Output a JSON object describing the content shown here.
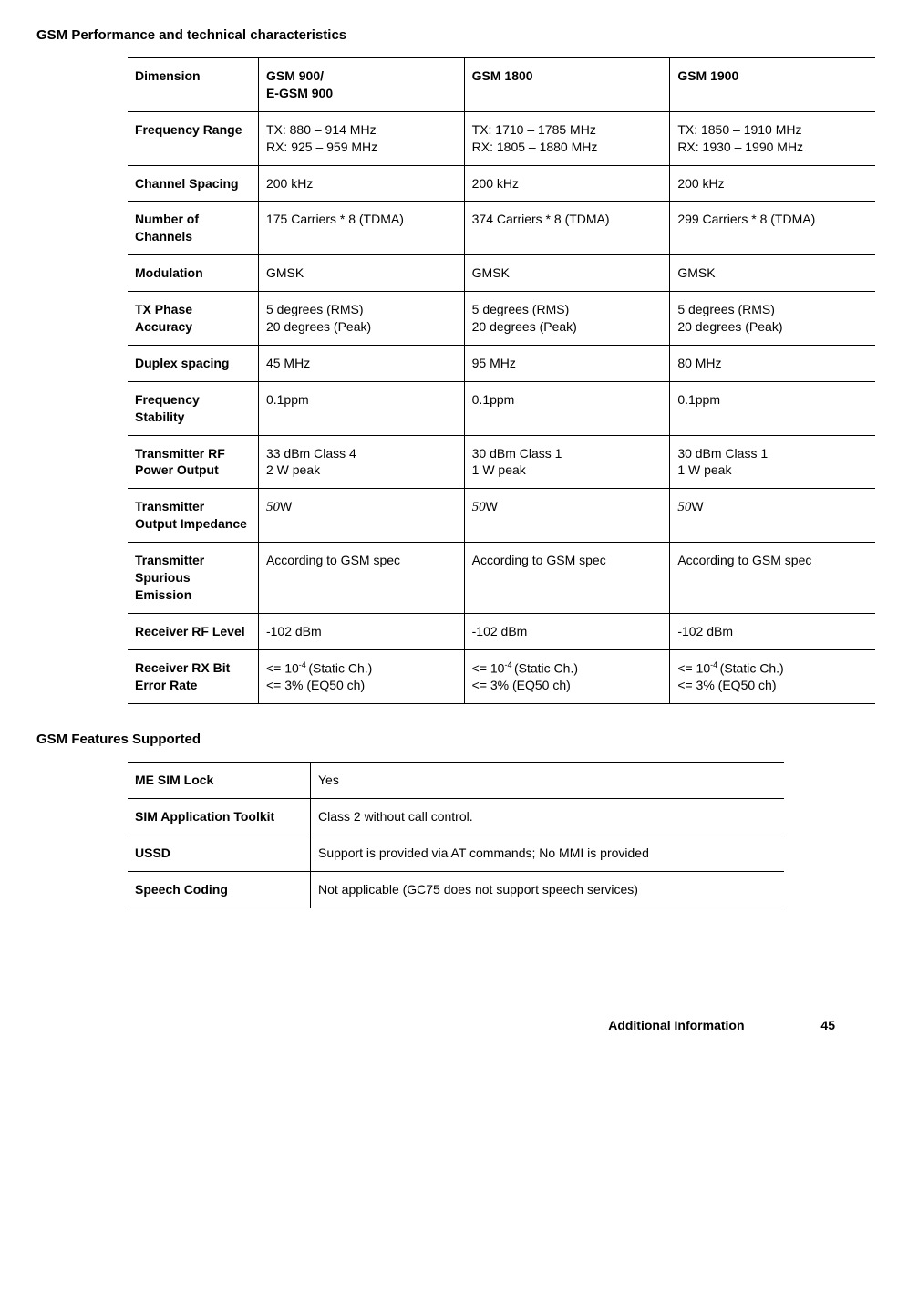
{
  "headings": {
    "perf": "GSM Performance and technical characteristics",
    "features": "GSM Features Supported"
  },
  "perf_table": {
    "header": {
      "dim": "Dimension",
      "c1a": "GSM 900/",
      "c1b": "E-GSM 900",
      "c2": "GSM 1800",
      "c3": "GSM 1900"
    },
    "rows": [
      {
        "label": "Frequency Range",
        "c1": "TX: 880 – 914 MHz\nRX: 925 – 959 MHz",
        "c2": "TX: 1710 – 1785 MHz\nRX: 1805 – 1880 MHz",
        "c3": "TX: 1850 – 1910 MHz\nRX: 1930 – 1990 MHz"
      },
      {
        "label": "Channel Spacing",
        "c1": "200 kHz",
        "c2": "200 kHz",
        "c3": "200 kHz"
      },
      {
        "label": "Number of Channels",
        "c1": "175 Carriers * 8 (TDMA)",
        "c2": "374 Carriers * 8 (TDMA)",
        "c3": "299 Carriers * 8 (TDMA)"
      },
      {
        "label": "Modulation",
        "c1": "GMSK",
        "c2": "GMSK",
        "c3": "GMSK"
      },
      {
        "label": "TX Phase Accuracy",
        "c1": "5 degrees (RMS)\n20 degrees (Peak)",
        "c2": "5 degrees (RMS)\n20 degrees (Peak)",
        "c3": "5 degrees (RMS)\n20 degrees (Peak)"
      },
      {
        "label": "Duplex spacing",
        "c1": "45 MHz",
        "c2": "95 MHz",
        "c3": "80 MHz"
      },
      {
        "label": "Frequency Stability",
        "c1": "0.1ppm",
        "c2": "0.1ppm",
        "c3": "0.1ppm"
      },
      {
        "label": "Transmitter RF Power Output",
        "c1": "33 dBm Class 4\n2 W peak",
        "c2": "30 dBm Class 1\n1 W peak",
        "c3": "30 dBm Class 1\n1 W peak"
      },
      {
        "label": "Transmitter Output Impedance",
        "c1_prefix": "50",
        "c1_suffix": "W",
        "c2_prefix": "50",
        "c2_suffix": "W",
        "c3_prefix": "50",
        "c3_suffix": "W",
        "impedance": true
      },
      {
        "label": "Transmitter Spurious Emission",
        "c1": "According to GSM spec",
        "c2": "According to GSM spec",
        "c3": "According to GSM spec"
      },
      {
        "label": "Receiver RF Level",
        "c1": "-102 dBm",
        "c2": "-102 dBm",
        "c3": "-102 dBm"
      },
      {
        "label": "Receiver RX Bit Error Rate",
        "bit_error": true,
        "be_a": "<= 10",
        "be_sup": "-4 ",
        "be_b": "(Static Ch.)",
        "be_c": "<= 3% (EQ50 ch)"
      }
    ]
  },
  "features_table": {
    "rows": [
      {
        "label": "ME SIM Lock",
        "val": "Yes"
      },
      {
        "label": "SIM Application Toolkit",
        "val": "Class 2 without call control."
      },
      {
        "label": "USSD",
        "val": "Support is provided via AT commands; No MMI is provided"
      },
      {
        "label": "Speech Coding",
        "val": "Not applicable (GC75 does not support speech services)"
      }
    ]
  },
  "footer": {
    "chapter": "Additional Information",
    "page": "45"
  }
}
